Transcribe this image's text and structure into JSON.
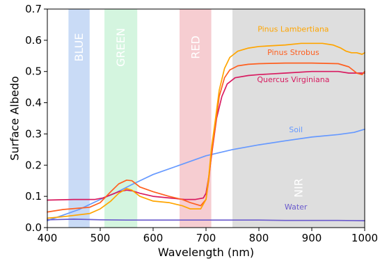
{
  "chart_data": {
    "type": "line",
    "title": "",
    "xlabel": "Wavelength (nm)",
    "ylabel": "Surface Albedo",
    "xlim": [
      400,
      1000
    ],
    "ylim": [
      0.0,
      0.7
    ],
    "xticks": [
      400,
      500,
      600,
      700,
      800,
      900,
      1000
    ],
    "yticks": [
      0.0,
      0.1,
      0.2,
      0.3,
      0.4,
      0.5,
      0.6,
      0.7
    ],
    "xtick_labels": [
      "400",
      "500",
      "600",
      "700",
      "800",
      "900",
      "1000"
    ],
    "ytick_labels": [
      "0.0",
      "0.1",
      "0.2",
      "0.3",
      "0.4",
      "0.5",
      "0.6",
      "0.7"
    ],
    "grid": false,
    "bands": [
      {
        "label": "BLUE",
        "range": [
          440,
          480
        ],
        "color": "#c9dbf6"
      },
      {
        "label": "GREEN",
        "range": [
          508,
          570
        ],
        "color": "#d4f5df"
      },
      {
        "label": "RED",
        "range": [
          650,
          710
        ],
        "color": "#f6cdd1"
      },
      {
        "label": "NIR",
        "range": [
          750,
          1000
        ],
        "color": "#dedede"
      }
    ],
    "series": [
      {
        "name": "Pinus Lambertiana",
        "color": "#ffa500",
        "label_at": [
          865,
          0.627
        ],
        "x": [
          400,
          430,
          480,
          500,
          520,
          535,
          550,
          560,
          575,
          600,
          630,
          655,
          670,
          690,
          700,
          705,
          710,
          718,
          725,
          735,
          745,
          760,
          780,
          800,
          850,
          880,
          900,
          920,
          940,
          955,
          965,
          975,
          985,
          995,
          1000
        ],
        "y": [
          0.03,
          0.035,
          0.045,
          0.06,
          0.085,
          0.11,
          0.125,
          0.12,
          0.1,
          0.085,
          0.08,
          0.07,
          0.06,
          0.06,
          0.09,
          0.16,
          0.25,
          0.35,
          0.44,
          0.51,
          0.545,
          0.565,
          0.575,
          0.58,
          0.585,
          0.59,
          0.59,
          0.59,
          0.585,
          0.575,
          0.565,
          0.56,
          0.56,
          0.555,
          0.56
        ]
      },
      {
        "name": "Pinus Strobus",
        "color": "#ff5f1f",
        "label_at": [
          865,
          0.553
        ],
        "x": [
          400,
          430,
          480,
          500,
          520,
          535,
          550,
          560,
          575,
          600,
          630,
          655,
          670,
          690,
          700,
          705,
          710,
          718,
          725,
          735,
          745,
          760,
          780,
          800,
          850,
          900,
          950,
          970,
          985,
          995,
          1000
        ],
        "y": [
          0.05,
          0.058,
          0.065,
          0.08,
          0.115,
          0.14,
          0.152,
          0.15,
          0.13,
          0.115,
          0.1,
          0.09,
          0.08,
          0.07,
          0.09,
          0.15,
          0.23,
          0.33,
          0.42,
          0.48,
          0.505,
          0.518,
          0.523,
          0.525,
          0.527,
          0.527,
          0.525,
          0.515,
          0.495,
          0.49,
          0.5
        ]
      },
      {
        "name": "Quercus Virginiana",
        "color": "#d81b60",
        "label_at": [
          865,
          0.466
        ],
        "x": [
          400,
          450,
          490,
          505,
          520,
          535,
          550,
          560,
          575,
          600,
          630,
          660,
          680,
          695,
          700,
          705,
          712,
          720,
          730,
          740,
          755,
          780,
          800,
          850,
          900,
          950,
          970,
          1000
        ],
        "y": [
          0.088,
          0.09,
          0.09,
          0.095,
          0.105,
          0.115,
          0.12,
          0.118,
          0.11,
          0.1,
          0.095,
          0.09,
          0.09,
          0.095,
          0.11,
          0.16,
          0.25,
          0.35,
          0.42,
          0.46,
          0.48,
          0.487,
          0.49,
          0.495,
          0.5,
          0.5,
          0.495,
          0.495
        ]
      },
      {
        "name": "Soil",
        "color": "#6699ff",
        "label_at": [
          870,
          0.305
        ],
        "x": [
          400,
          430,
          460,
          500,
          530,
          560,
          600,
          650,
          700,
          750,
          800,
          850,
          900,
          950,
          980,
          1000
        ],
        "y": [
          0.022,
          0.04,
          0.058,
          0.09,
          0.112,
          0.138,
          0.17,
          0.2,
          0.23,
          0.25,
          0.265,
          0.278,
          0.29,
          0.298,
          0.305,
          0.315
        ]
      },
      {
        "name": "Water",
        "color": "#6a5acd",
        "label_at": [
          870,
          0.058
        ],
        "x": [
          400,
          450,
          500,
          550,
          600,
          650,
          700,
          750,
          800,
          850,
          900,
          950,
          1000
        ],
        "y": [
          0.025,
          0.027,
          0.025,
          0.024,
          0.024,
          0.024,
          0.024,
          0.024,
          0.024,
          0.023,
          0.023,
          0.023,
          0.022
        ]
      }
    ]
  }
}
